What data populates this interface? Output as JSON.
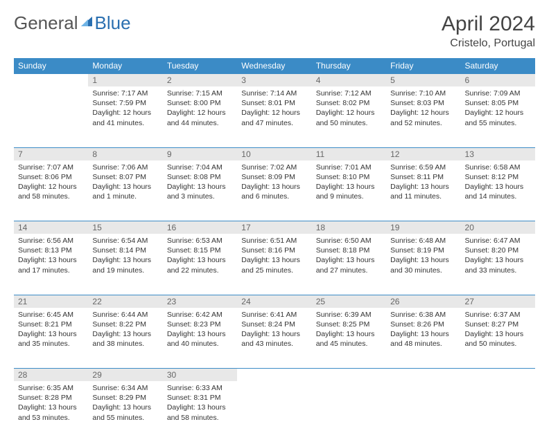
{
  "logo": {
    "part1": "General",
    "part2": "Blue",
    "color1": "#555555",
    "color2": "#2a6fb0"
  },
  "title": "April 2024",
  "location": "Cristelo, Portugal",
  "colors": {
    "header_bg": "#3b8bc6",
    "header_fg": "#ffffff",
    "daynum_bg": "#e8e8e8",
    "daynum_fg": "#666666",
    "border": "#3b8bc6",
    "text": "#333333"
  },
  "day_headers": [
    "Sunday",
    "Monday",
    "Tuesday",
    "Wednesday",
    "Thursday",
    "Friday",
    "Saturday"
  ],
  "weeks": [
    {
      "nums": [
        "",
        "1",
        "2",
        "3",
        "4",
        "5",
        "6"
      ],
      "cells": [
        {
          "empty": true
        },
        {
          "sunrise": "Sunrise: 7:17 AM",
          "sunset": "Sunset: 7:59 PM",
          "daylight": "Daylight: 12 hours and 41 minutes."
        },
        {
          "sunrise": "Sunrise: 7:15 AM",
          "sunset": "Sunset: 8:00 PM",
          "daylight": "Daylight: 12 hours and 44 minutes."
        },
        {
          "sunrise": "Sunrise: 7:14 AM",
          "sunset": "Sunset: 8:01 PM",
          "daylight": "Daylight: 12 hours and 47 minutes."
        },
        {
          "sunrise": "Sunrise: 7:12 AM",
          "sunset": "Sunset: 8:02 PM",
          "daylight": "Daylight: 12 hours and 50 minutes."
        },
        {
          "sunrise": "Sunrise: 7:10 AM",
          "sunset": "Sunset: 8:03 PM",
          "daylight": "Daylight: 12 hours and 52 minutes."
        },
        {
          "sunrise": "Sunrise: 7:09 AM",
          "sunset": "Sunset: 8:05 PM",
          "daylight": "Daylight: 12 hours and 55 minutes."
        }
      ]
    },
    {
      "nums": [
        "7",
        "8",
        "9",
        "10",
        "11",
        "12",
        "13"
      ],
      "cells": [
        {
          "sunrise": "Sunrise: 7:07 AM",
          "sunset": "Sunset: 8:06 PM",
          "daylight": "Daylight: 12 hours and 58 minutes."
        },
        {
          "sunrise": "Sunrise: 7:06 AM",
          "sunset": "Sunset: 8:07 PM",
          "daylight": "Daylight: 13 hours and 1 minute."
        },
        {
          "sunrise": "Sunrise: 7:04 AM",
          "sunset": "Sunset: 8:08 PM",
          "daylight": "Daylight: 13 hours and 3 minutes."
        },
        {
          "sunrise": "Sunrise: 7:02 AM",
          "sunset": "Sunset: 8:09 PM",
          "daylight": "Daylight: 13 hours and 6 minutes."
        },
        {
          "sunrise": "Sunrise: 7:01 AM",
          "sunset": "Sunset: 8:10 PM",
          "daylight": "Daylight: 13 hours and 9 minutes."
        },
        {
          "sunrise": "Sunrise: 6:59 AM",
          "sunset": "Sunset: 8:11 PM",
          "daylight": "Daylight: 13 hours and 11 minutes."
        },
        {
          "sunrise": "Sunrise: 6:58 AM",
          "sunset": "Sunset: 8:12 PM",
          "daylight": "Daylight: 13 hours and 14 minutes."
        }
      ]
    },
    {
      "nums": [
        "14",
        "15",
        "16",
        "17",
        "18",
        "19",
        "20"
      ],
      "cells": [
        {
          "sunrise": "Sunrise: 6:56 AM",
          "sunset": "Sunset: 8:13 PM",
          "daylight": "Daylight: 13 hours and 17 minutes."
        },
        {
          "sunrise": "Sunrise: 6:54 AM",
          "sunset": "Sunset: 8:14 PM",
          "daylight": "Daylight: 13 hours and 19 minutes."
        },
        {
          "sunrise": "Sunrise: 6:53 AM",
          "sunset": "Sunset: 8:15 PM",
          "daylight": "Daylight: 13 hours and 22 minutes."
        },
        {
          "sunrise": "Sunrise: 6:51 AM",
          "sunset": "Sunset: 8:16 PM",
          "daylight": "Daylight: 13 hours and 25 minutes."
        },
        {
          "sunrise": "Sunrise: 6:50 AM",
          "sunset": "Sunset: 8:18 PM",
          "daylight": "Daylight: 13 hours and 27 minutes."
        },
        {
          "sunrise": "Sunrise: 6:48 AM",
          "sunset": "Sunset: 8:19 PM",
          "daylight": "Daylight: 13 hours and 30 minutes."
        },
        {
          "sunrise": "Sunrise: 6:47 AM",
          "sunset": "Sunset: 8:20 PM",
          "daylight": "Daylight: 13 hours and 33 minutes."
        }
      ]
    },
    {
      "nums": [
        "21",
        "22",
        "23",
        "24",
        "25",
        "26",
        "27"
      ],
      "cells": [
        {
          "sunrise": "Sunrise: 6:45 AM",
          "sunset": "Sunset: 8:21 PM",
          "daylight": "Daylight: 13 hours and 35 minutes."
        },
        {
          "sunrise": "Sunrise: 6:44 AM",
          "sunset": "Sunset: 8:22 PM",
          "daylight": "Daylight: 13 hours and 38 minutes."
        },
        {
          "sunrise": "Sunrise: 6:42 AM",
          "sunset": "Sunset: 8:23 PM",
          "daylight": "Daylight: 13 hours and 40 minutes."
        },
        {
          "sunrise": "Sunrise: 6:41 AM",
          "sunset": "Sunset: 8:24 PM",
          "daylight": "Daylight: 13 hours and 43 minutes."
        },
        {
          "sunrise": "Sunrise: 6:39 AM",
          "sunset": "Sunset: 8:25 PM",
          "daylight": "Daylight: 13 hours and 45 minutes."
        },
        {
          "sunrise": "Sunrise: 6:38 AM",
          "sunset": "Sunset: 8:26 PM",
          "daylight": "Daylight: 13 hours and 48 minutes."
        },
        {
          "sunrise": "Sunrise: 6:37 AM",
          "sunset": "Sunset: 8:27 PM",
          "daylight": "Daylight: 13 hours and 50 minutes."
        }
      ]
    },
    {
      "nums": [
        "28",
        "29",
        "30",
        "",
        "",
        "",
        ""
      ],
      "cells": [
        {
          "sunrise": "Sunrise: 6:35 AM",
          "sunset": "Sunset: 8:28 PM",
          "daylight": "Daylight: 13 hours and 53 minutes."
        },
        {
          "sunrise": "Sunrise: 6:34 AM",
          "sunset": "Sunset: 8:29 PM",
          "daylight": "Daylight: 13 hours and 55 minutes."
        },
        {
          "sunrise": "Sunrise: 6:33 AM",
          "sunset": "Sunset: 8:31 PM",
          "daylight": "Daylight: 13 hours and 58 minutes."
        },
        {
          "empty": true
        },
        {
          "empty": true
        },
        {
          "empty": true
        },
        {
          "empty": true
        }
      ]
    }
  ]
}
